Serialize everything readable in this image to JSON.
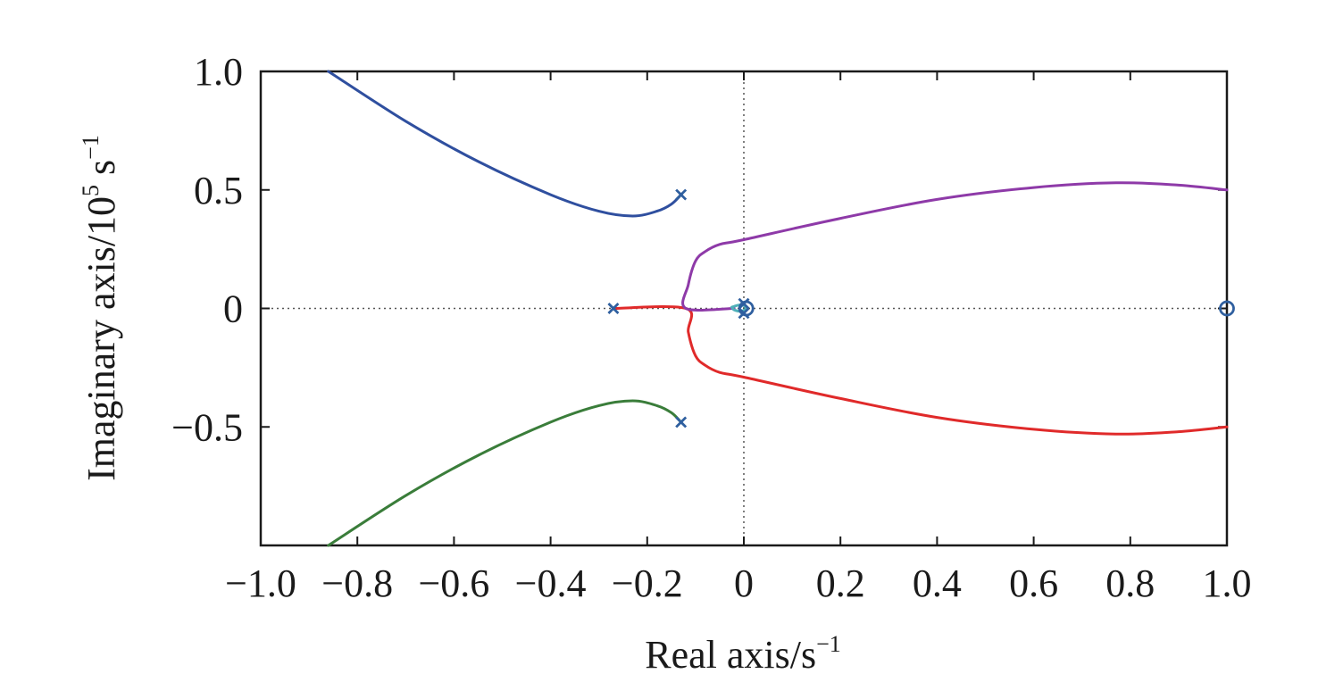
{
  "chart_data": {
    "type": "line",
    "title": "",
    "xlabel": {
      "base": "Real axis/s",
      "sup": "−1"
    },
    "ylabel": {
      "base": "Imaginary axis/10",
      "sup1": "5",
      "mid": " s",
      "sup2": "−1"
    },
    "xlim": [
      -1.0,
      1.0
    ],
    "ylim": [
      -1.0,
      1.0
    ],
    "x_ticks": [
      -1.0,
      -0.8,
      -0.6,
      -0.4,
      -0.2,
      0,
      0.2,
      0.4,
      0.6,
      0.8,
      1.0
    ],
    "x_tick_labels": [
      "−1.0",
      "−0.8",
      "−0.6",
      "−0.4",
      "−0.2",
      "0",
      "0.2",
      "0.4",
      "0.6",
      "0.8",
      "1.0"
    ],
    "y_ticks": [
      1.0,
      0.5,
      0,
      -0.5
    ],
    "y_tick_labels": [
      "1.0",
      "0.5",
      "0",
      "−0.5"
    ],
    "zero_reference_lines": true,
    "colors": {
      "series_blue": "#2f4f9f",
      "series_green": "#3a7d3a",
      "series_purple": "#8e3aa8",
      "series_red": "#e02a2a",
      "series_cyan": "#4fb0b8",
      "marker": "#2f5f9f",
      "axis": "#1a1a1a"
    },
    "series": [
      {
        "color_key": "series_blue",
        "points": [
          [
            -0.13,
            0.48
          ],
          [
            -0.15,
            0.44
          ],
          [
            -0.18,
            0.41
          ],
          [
            -0.23,
            0.39
          ],
          [
            -0.3,
            0.41
          ],
          [
            -0.4,
            0.48
          ],
          [
            -0.55,
            0.62
          ],
          [
            -0.7,
            0.79
          ],
          [
            -0.86,
            1.0
          ]
        ]
      },
      {
        "color_key": "series_green",
        "points": [
          [
            -0.13,
            -0.48
          ],
          [
            -0.15,
            -0.44
          ],
          [
            -0.18,
            -0.41
          ],
          [
            -0.23,
            -0.39
          ],
          [
            -0.3,
            -0.41
          ],
          [
            -0.4,
            -0.48
          ],
          [
            -0.55,
            -0.62
          ],
          [
            -0.7,
            -0.79
          ],
          [
            -0.86,
            -1.0
          ]
        ]
      },
      {
        "color_key": "series_red",
        "points": [
          [
            -0.27,
            0
          ],
          [
            -0.12,
            0
          ],
          [
            -0.115,
            -0.1
          ],
          [
            -0.1,
            -0.2
          ],
          [
            -0.08,
            -0.24
          ],
          [
            -0.05,
            -0.27
          ],
          [
            0,
            -0.29
          ],
          [
            0.2,
            -0.38
          ],
          [
            0.4,
            -0.46
          ],
          [
            0.6,
            -0.51
          ],
          [
            0.77,
            -0.53
          ],
          [
            0.9,
            -0.52
          ],
          [
            1.0,
            -0.5
          ]
        ]
      },
      {
        "color_key": "series_purple",
        "points": [
          [
            -0.02,
            0
          ],
          [
            -0.12,
            0
          ],
          [
            -0.115,
            0.1
          ],
          [
            -0.1,
            0.2
          ],
          [
            -0.08,
            0.24
          ],
          [
            -0.05,
            0.27
          ],
          [
            0,
            0.29
          ],
          [
            0.2,
            0.38
          ],
          [
            0.4,
            0.46
          ],
          [
            0.6,
            0.51
          ],
          [
            0.77,
            0.53
          ],
          [
            0.9,
            0.52
          ],
          [
            1.0,
            0.5
          ]
        ]
      },
      {
        "color_key": "series_cyan",
        "points": [
          [
            -0.025,
            0.005
          ],
          [
            -0.015,
            0.012
          ],
          [
            -0.005,
            0.015
          ],
          [
            0.003,
            0.008
          ],
          [
            0.003,
            -0.005
          ],
          [
            -0.008,
            -0.012
          ],
          [
            -0.02,
            -0.006
          ],
          [
            -0.025,
            0.005
          ]
        ]
      }
    ],
    "poles": [
      [
        -0.13,
        0.48
      ],
      [
        -0.13,
        -0.48
      ],
      [
        -0.27,
        0
      ],
      [
        0.0,
        0.02
      ],
      [
        0.0,
        -0.02
      ]
    ],
    "zeros": [
      [
        0.005,
        0
      ],
      [
        1.0,
        0
      ]
    ]
  }
}
